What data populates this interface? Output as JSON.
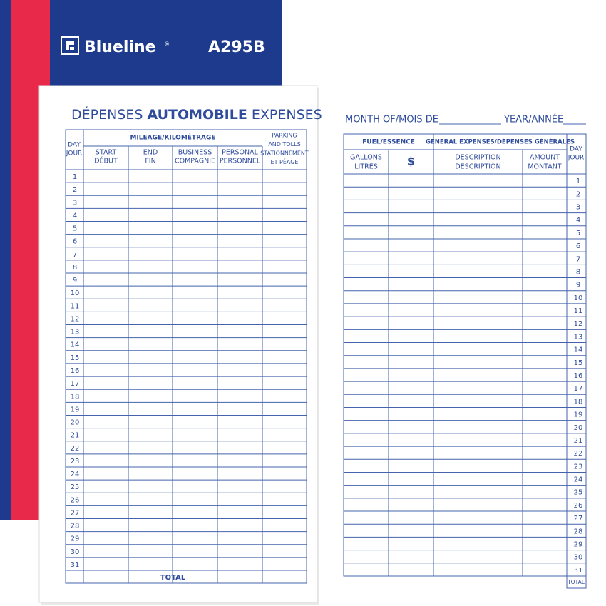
{
  "cover": {
    "brand": "Blueline",
    "registered": "®",
    "model": "A295B"
  },
  "left_page": {
    "title": [
      "DÉPENSES",
      "AUTOMOBILE",
      "EXPENSES"
    ],
    "day_header": [
      "DAY",
      "JOUR"
    ],
    "group_header": "MILEAGE/KILOMÉTRAGE",
    "columns": [
      [
        "START",
        "DÉBUT"
      ],
      [
        "END",
        "FIN"
      ],
      [
        "BUSINESS",
        "COMPAGNIE"
      ],
      [
        "PERSONAL",
        "PERSONNEL"
      ],
      [
        "PARKING",
        "AND TOLLS",
        "STATIONNEMENT",
        "ET PÉAGE"
      ]
    ],
    "total": "TOTAL"
  },
  "right_page": {
    "month_label": "MONTH OF/MOIS DE",
    "year_label": "YEAR/ANNÉE",
    "fuel_header": "FUEL/ESSENCE",
    "general_header": "GENERAL EXPENSES/DÉPENSES GÉNÉRALES",
    "columns": [
      [
        "GALLONS",
        "LITRES"
      ],
      [
        "$"
      ],
      [
        "DESCRIPTION",
        "DESCRIPTION"
      ],
      [
        "AMOUNT",
        "MONTANT"
      ]
    ],
    "day_header": [
      "DAY",
      "JOUR"
    ],
    "total": "TOTAL"
  },
  "days": [
    "1",
    "2",
    "3",
    "4",
    "5",
    "6",
    "7",
    "8",
    "9",
    "10",
    "11",
    "12",
    "13",
    "14",
    "15",
    "16",
    "17",
    "18",
    "19",
    "20",
    "21",
    "22",
    "23",
    "24",
    "25",
    "26",
    "27",
    "28",
    "29",
    "30",
    "31"
  ]
}
